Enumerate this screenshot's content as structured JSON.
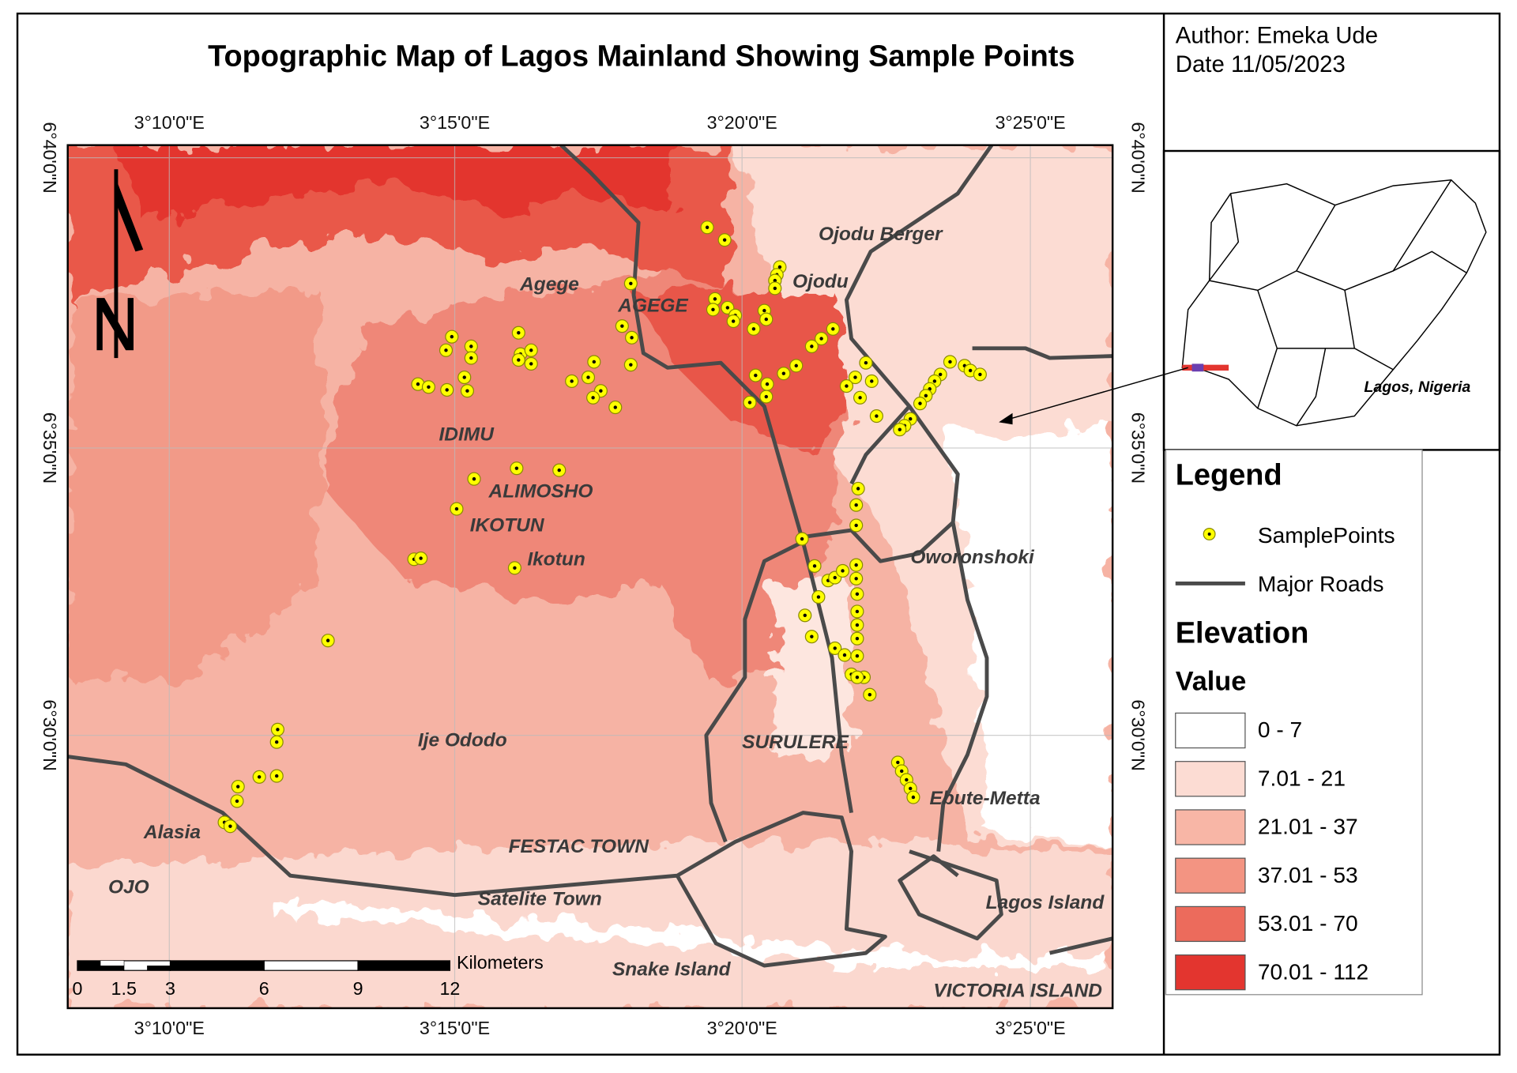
{
  "title": "Topographic Map of Lagos Mainland Showing Sample Points",
  "author": "Author: Emeka Ude",
  "date": "Date 11/05/2023",
  "graticule": {
    "longitudes": [
      "3°10'0\"E",
      "3°15'0\"E",
      "3°20'0\"E",
      "3°25'0\"E"
    ],
    "latitudes": [
      "6°40'0\"N",
      "6°35'0\"N",
      "6°30'0\"N"
    ]
  },
  "places": [
    "Ojodu Berger",
    "Agege",
    "AGEGE",
    "Ojodu",
    "IDIMU",
    "ALIMOSHO",
    "IKOTUN",
    "Ikotun",
    "Oworonshoki",
    "Ije Ododo",
    "SURULERE",
    "Ebute-Metta",
    "Alasia",
    "FESTAC TOWN",
    "OJO",
    "Satelite Town",
    "Lagos Island",
    "Snake Island",
    "VICTORIA ISLAND"
  ],
  "scale_bar": {
    "unit": "Kilometers",
    "labels": [
      "0",
      "1.5",
      "3",
      "6",
      "9",
      "12"
    ]
  },
  "inset": {
    "label": "Lagos, Nigeria"
  },
  "legend": {
    "title": "Legend",
    "sample_points": "SamplePoints",
    "roads": "Major Roads",
    "elevation_title": "Elevation",
    "value_title": "Value",
    "classes": [
      {
        "label": "0 - 7",
        "color": "#ffffff"
      },
      {
        "label": "7.01 - 21",
        "color": "#fcdcd3"
      },
      {
        "label": "21.01 - 37",
        "color": "#f8b6a6"
      },
      {
        "label": "37.01 - 53",
        "color": "#f39482"
      },
      {
        "label": "53.01 - 70",
        "color": "#ec6b5c"
      },
      {
        "label": "70.01 - 112",
        "color": "#e3352f"
      }
    ]
  }
}
